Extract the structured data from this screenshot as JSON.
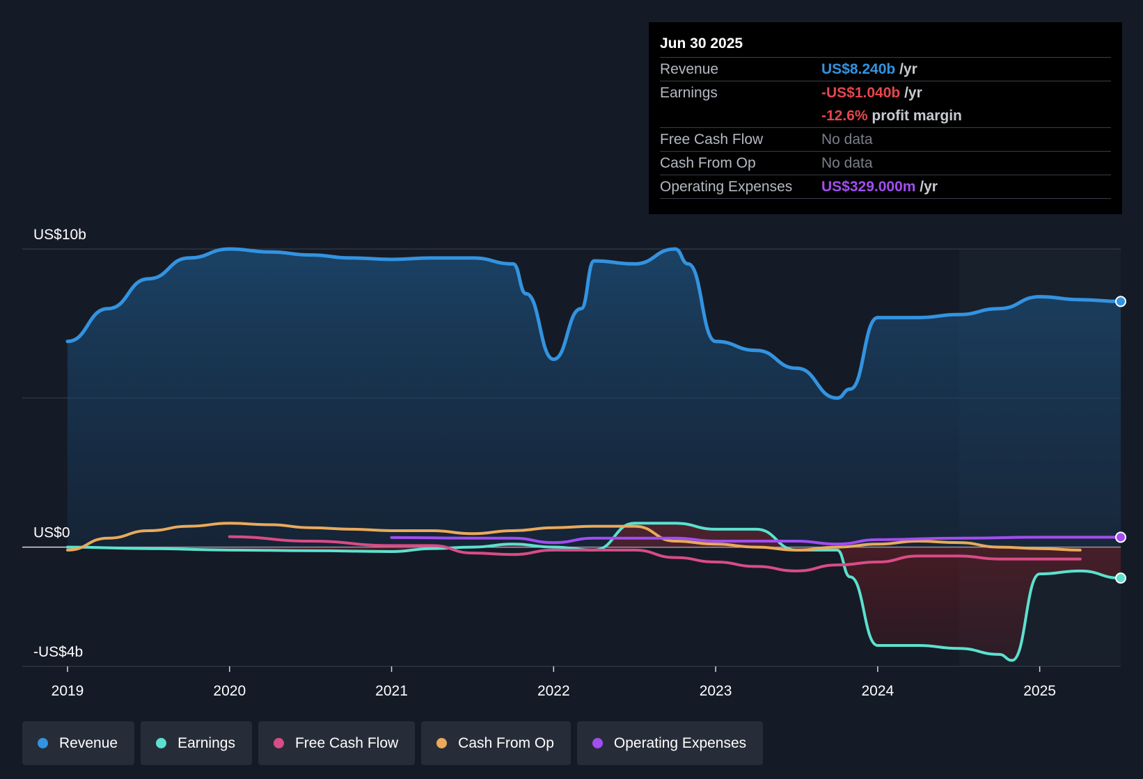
{
  "chart_data": {
    "type": "line",
    "x_label_ticks": [
      "2019",
      "2020",
      "2021",
      "2022",
      "2023",
      "2024",
      "2025"
    ],
    "y_label_ticks": [
      "US$10b",
      "US$0",
      "-US$4b"
    ],
    "ylim": [
      -4,
      10
    ],
    "xlim": [
      2019,
      2025.5
    ],
    "legend_position": "bottom-left",
    "grid": "horizontal",
    "series": [
      {
        "name": "Revenue",
        "color": "#3393e0",
        "filled": true,
        "x": [
          2019,
          2019.25,
          2019.5,
          2019.75,
          2020,
          2020.25,
          2020.5,
          2020.75,
          2021,
          2021.25,
          2021.5,
          2021.75,
          2021.83,
          2022,
          2022.17,
          2022.25,
          2022.5,
          2022.75,
          2022.83,
          2023,
          2023.25,
          2023.5,
          2023.75,
          2023.83,
          2024,
          2024.25,
          2024.5,
          2024.75,
          2025,
          2025.25,
          2025.5
        ],
        "y": [
          6.9,
          8.0,
          9.0,
          9.7,
          10.0,
          9.9,
          9.8,
          9.7,
          9.65,
          9.7,
          9.7,
          9.5,
          8.5,
          6.3,
          8.0,
          9.6,
          9.5,
          10.0,
          9.5,
          6.9,
          6.6,
          6.0,
          5.0,
          5.3,
          7.7,
          7.7,
          7.8,
          8.0,
          8.4,
          8.3,
          8.24
        ]
      },
      {
        "name": "Earnings",
        "color": "#5ce1cf",
        "x": [
          2019,
          2019.5,
          2020,
          2020.5,
          2021,
          2021.25,
          2021.5,
          2021.75,
          2022,
          2022.25,
          2022.5,
          2022.75,
          2023,
          2023.25,
          2023.5,
          2023.75,
          2023.83,
          2024,
          2024.25,
          2024.5,
          2024.75,
          2024.83,
          2025,
          2025.25,
          2025.5
        ],
        "y": [
          0,
          -0.05,
          -0.1,
          -0.12,
          -0.15,
          -0.05,
          0,
          0.1,
          0,
          -0.1,
          0.8,
          0.8,
          0.6,
          0.6,
          -0.1,
          -0.1,
          -1.0,
          -3.3,
          -3.3,
          -3.4,
          -3.6,
          -3.8,
          -0.9,
          -0.8,
          -1.04
        ]
      },
      {
        "name": "Free Cash Flow",
        "color": "#d94c86",
        "x": [
          2020,
          2020.5,
          2021,
          2021.25,
          2021.5,
          2021.75,
          2022,
          2022.25,
          2022.5,
          2022.75,
          2023,
          2023.25,
          2023.5,
          2023.75,
          2024,
          2024.25,
          2024.5,
          2024.75,
          2025,
          2025.25
        ],
        "y": [
          0.35,
          0.2,
          0.05,
          0.05,
          -0.2,
          -0.25,
          -0.1,
          -0.1,
          -0.1,
          -0.35,
          -0.5,
          -0.65,
          -0.8,
          -0.6,
          -0.5,
          -0.3,
          -0.3,
          -0.4,
          -0.4,
          -0.4
        ]
      },
      {
        "name": "Cash From Op",
        "color": "#e9aa5b",
        "x": [
          2019,
          2019.25,
          2019.5,
          2019.75,
          2020,
          2020.25,
          2020.5,
          2020.75,
          2021,
          2021.25,
          2021.5,
          2021.75,
          2022,
          2022.25,
          2022.5,
          2022.75,
          2023,
          2023.25,
          2023.5,
          2023.75,
          2024,
          2024.25,
          2024.5,
          2024.75,
          2025,
          2025.25
        ],
        "y": [
          -0.1,
          0.3,
          0.55,
          0.7,
          0.8,
          0.75,
          0.65,
          0.6,
          0.55,
          0.55,
          0.45,
          0.55,
          0.65,
          0.7,
          0.7,
          0.2,
          0.1,
          0,
          -0.1,
          0,
          0.1,
          0.2,
          0.15,
          0,
          -0.05,
          -0.1
        ]
      },
      {
        "name": "Operating Expenses",
        "color": "#a24ef0",
        "x": [
          2021,
          2021.5,
          2021.75,
          2022,
          2022.25,
          2022.5,
          2022.75,
          2023,
          2023.5,
          2023.75,
          2024,
          2024.5,
          2025,
          2025.5
        ],
        "y": [
          0.32,
          0.3,
          0.3,
          0.15,
          0.3,
          0.3,
          0.3,
          0.2,
          0.2,
          0.1,
          0.25,
          0.3,
          0.33,
          0.33
        ]
      }
    ]
  },
  "tooltip": {
    "date": "Jun 30 2025",
    "revenue_label": "Revenue",
    "revenue_value": "US$8.240b",
    "revenue_unit": " /yr",
    "earnings_label": "Earnings",
    "earnings_value": "-US$1.040b",
    "earnings_unit": " /yr",
    "margin_value": "-12.6%",
    "margin_unit": " profit margin",
    "fcf_label": "Free Cash Flow",
    "fcf_value": "No data",
    "cfo_label": "Cash From Op",
    "cfo_value": "No data",
    "opex_label": "Operating Expenses",
    "opex_value": "US$329.000m",
    "opex_unit": " /yr"
  },
  "legend": {
    "items": [
      {
        "label": "Revenue",
        "color": "#3393e0"
      },
      {
        "label": "Earnings",
        "color": "#5ce1cf"
      },
      {
        "label": "Free Cash Flow",
        "color": "#d94c86"
      },
      {
        "label": "Cash From Op",
        "color": "#e9aa5b"
      },
      {
        "label": "Operating Expenses",
        "color": "#a24ef0"
      }
    ]
  },
  "colors": {
    "background": "#151b26",
    "revenue": "#3393e0",
    "earnings_negative": "#e5474d",
    "opex": "#a24ef0"
  }
}
